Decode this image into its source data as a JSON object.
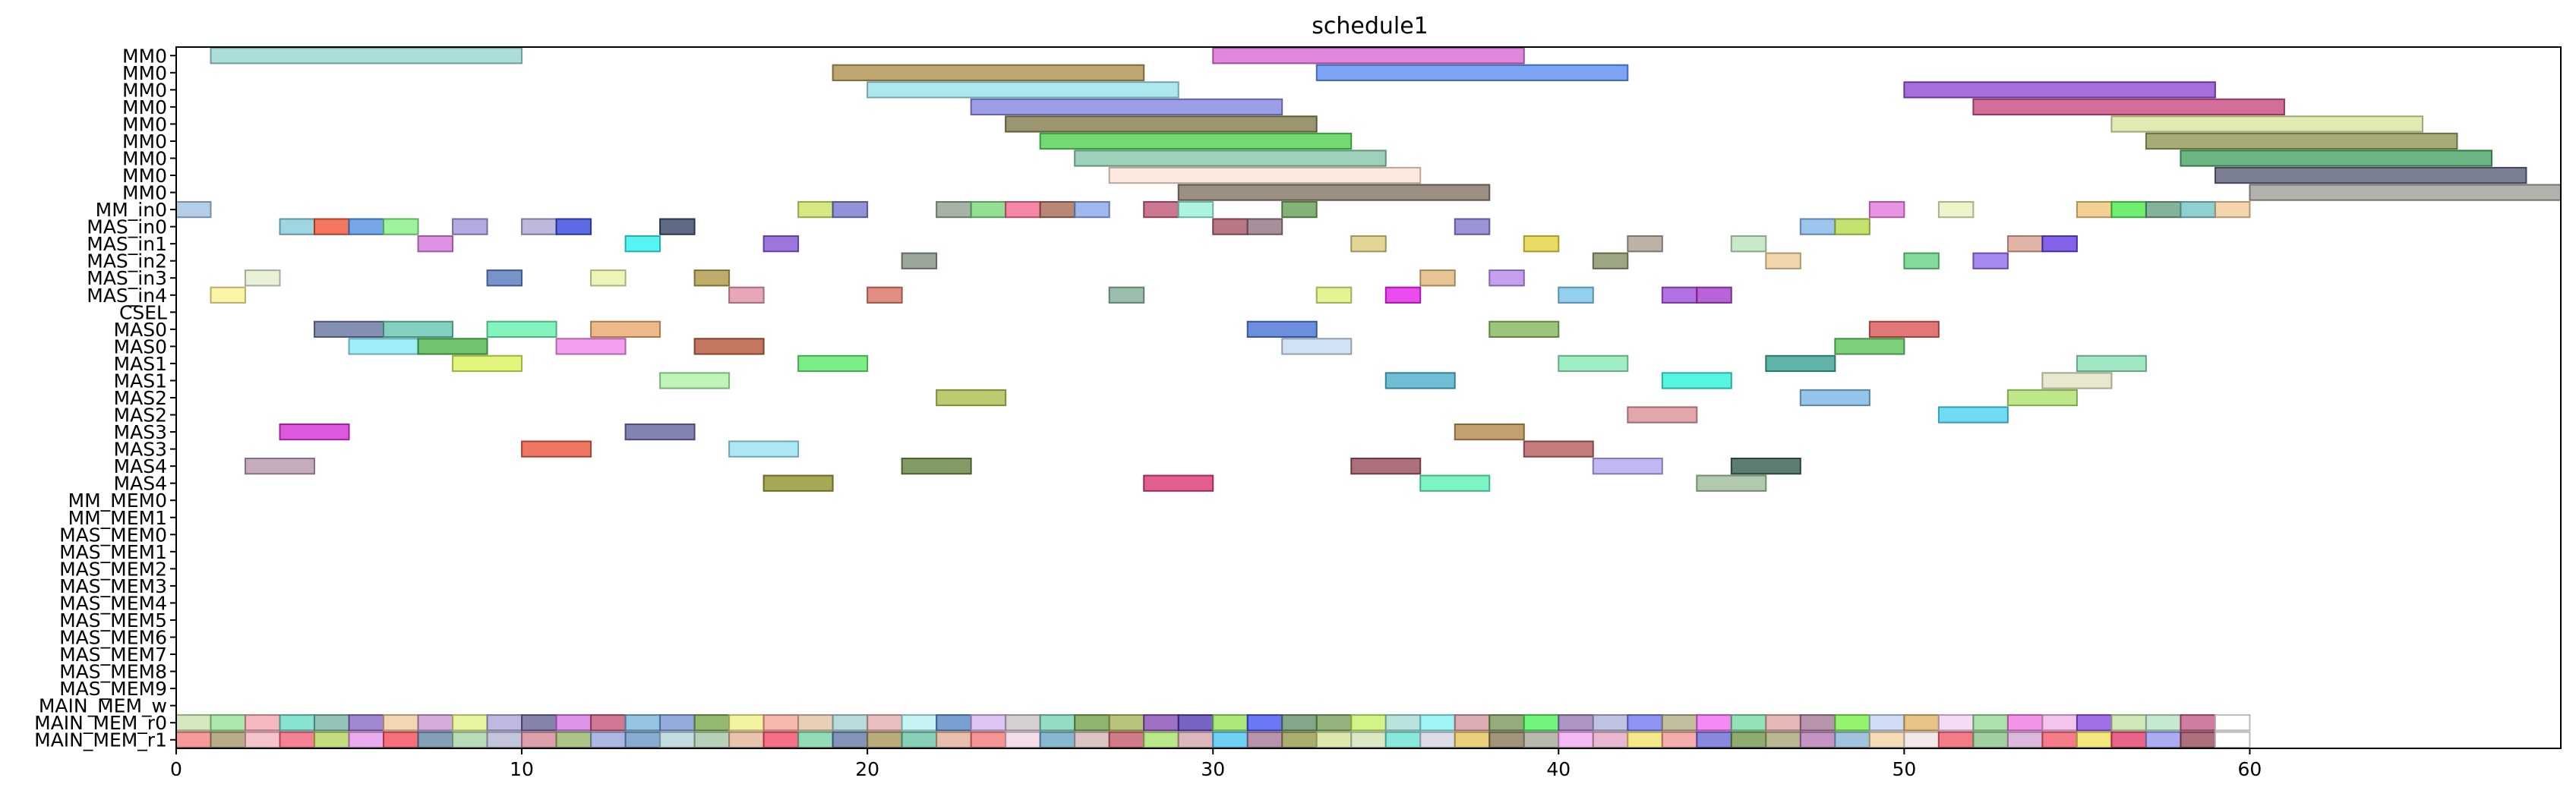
{
  "chart_data": {
    "type": "gantt",
    "title": "schedule1",
    "xlim": [
      0,
      69
    ],
    "xticks": [
      0,
      10,
      20,
      30,
      40,
      50,
      60
    ],
    "grid": false,
    "rows": [
      "MM0",
      "MM0",
      "MM0",
      "MM0",
      "MM0",
      "MM0",
      "MM0",
      "MM0",
      "MM0",
      "MM_in0",
      "MAS_in0",
      "MAS_in1",
      "MAS_in2",
      "MAS_in3",
      "MAS_in4",
      "CSEL",
      "MAS0",
      "MAS0",
      "MAS1",
      "MAS1",
      "MAS2",
      "MAS2",
      "MAS3",
      "MAS3",
      "MAS4",
      "MAS4",
      "MM_MEM0",
      "MM_MEM1",
      "MAS_MEM0",
      "MAS_MEM1",
      "MAS_MEM2",
      "MAS_MEM3",
      "MAS_MEM4",
      "MAS_MEM5",
      "MAS_MEM6",
      "MAS_MEM7",
      "MAS_MEM8",
      "MAS_MEM9",
      "MAIN_MEM_w",
      "MAIN_MEM_r0",
      "MAIN_MEM_r1"
    ],
    "tasks": [
      {
        "row": 0,
        "start": 1,
        "end": 10,
        "color": "#8fd3cc"
      },
      {
        "row": 0,
        "start": 30,
        "end": 39,
        "color": "#d65fcf"
      },
      {
        "row": 1,
        "start": 19,
        "end": 28,
        "color": "#a88a3e"
      },
      {
        "row": 1,
        "start": 33,
        "end": 42,
        "color": "#4f86f0"
      },
      {
        "row": 2,
        "start": 20,
        "end": 29,
        "color": "#94dfe8"
      },
      {
        "row": 2,
        "start": 50,
        "end": 59,
        "color": "#8a3dcc"
      },
      {
        "row": 3,
        "start": 23,
        "end": 32,
        "color": "#7b7fe0"
      },
      {
        "row": 3,
        "start": 52,
        "end": 61,
        "color": "#c43d7a"
      },
      {
        "row": 4,
        "start": 24,
        "end": 33,
        "color": "#7a7240"
      },
      {
        "row": 4,
        "start": 56,
        "end": 65,
        "color": "#d8e39a"
      },
      {
        "row": 5,
        "start": 25,
        "end": 34,
        "color": "#44cc44"
      },
      {
        "row": 5,
        "start": 57,
        "end": 66,
        "color": "#888f4a"
      },
      {
        "row": 6,
        "start": 26,
        "end": 35,
        "color": "#7ec2a2"
      },
      {
        "row": 6,
        "start": 58,
        "end": 67,
        "color": "#3b9e5a"
      },
      {
        "row": 7,
        "start": 27,
        "end": 36,
        "color": "#fbe0d2"
      },
      {
        "row": 7,
        "start": 59,
        "end": 68,
        "color": "#4f5470"
      },
      {
        "row": 8,
        "start": 29,
        "end": 38,
        "color": "#7a6a58"
      },
      {
        "row": 8,
        "start": 60,
        "end": 69,
        "color": "#9a9890"
      },
      {
        "row": 9,
        "start": 0,
        "end": 1,
        "color": "#9bbde0"
      },
      {
        "row": 9,
        "start": 18,
        "end": 19,
        "color": "#c9e05a"
      },
      {
        "row": 9,
        "start": 19,
        "end": 20,
        "color": "#6b6fc8"
      },
      {
        "row": 9,
        "start": 22,
        "end": 23,
        "color": "#8a9a88"
      },
      {
        "row": 9,
        "start": 23,
        "end": 24,
        "color": "#6fd46f"
      },
      {
        "row": 9,
        "start": 24,
        "end": 25,
        "color": "#f25f8a"
      },
      {
        "row": 9,
        "start": 25,
        "end": 26,
        "color": "#a0604a"
      },
      {
        "row": 9,
        "start": 26,
        "end": 27,
        "color": "#7fa0e8"
      },
      {
        "row": 9,
        "start": 28,
        "end": 29,
        "color": "#b84a6a"
      },
      {
        "row": 9,
        "start": 29,
        "end": 30,
        "color": "#8ef0d6"
      },
      {
        "row": 9,
        "start": 32,
        "end": 33,
        "color": "#5a9a4a"
      },
      {
        "row": 9,
        "start": 49,
        "end": 50,
        "color": "#e070d8"
      },
      {
        "row": 9,
        "start": 51,
        "end": 52,
        "color": "#e8f0b8"
      },
      {
        "row": 9,
        "start": 55,
        "end": 56,
        "color": "#f0c070"
      },
      {
        "row": 9,
        "start": 56,
        "end": 57,
        "color": "#40e840"
      },
      {
        "row": 9,
        "start": 57,
        "end": 58,
        "color": "#5a9a7a"
      },
      {
        "row": 9,
        "start": 58,
        "end": 59,
        "color": "#6ac0c0"
      },
      {
        "row": 9,
        "start": 59,
        "end": 60,
        "color": "#f0c890"
      },
      {
        "row": 10,
        "start": 3,
        "end": 4,
        "color": "#7ec8d8"
      },
      {
        "row": 10,
        "start": 4,
        "end": 5,
        "color": "#f04a2a"
      },
      {
        "row": 10,
        "start": 5,
        "end": 6,
        "color": "#4a88e0"
      },
      {
        "row": 10,
        "start": 6,
        "end": 7,
        "color": "#7ef07e"
      },
      {
        "row": 10,
        "start": 8,
        "end": 9,
        "color": "#9a90d8"
      },
      {
        "row": 10,
        "start": 10,
        "end": 11,
        "color": "#a8a0d0"
      },
      {
        "row": 10,
        "start": 11,
        "end": 12,
        "color": "#2a3ad8"
      },
      {
        "row": 10,
        "start": 14,
        "end": 15,
        "color": "#2a3a5a"
      },
      {
        "row": 10,
        "start": 30,
        "end": 31,
        "color": "#a04a5a"
      },
      {
        "row": 10,
        "start": 31,
        "end": 32,
        "color": "#8a6a7a"
      },
      {
        "row": 10,
        "start": 37,
        "end": 38,
        "color": "#7a70c8"
      },
      {
        "row": 10,
        "start": 47,
        "end": 48,
        "color": "#7ab0e8"
      },
      {
        "row": 10,
        "start": 48,
        "end": 49,
        "color": "#b0d840"
      },
      {
        "row": 11,
        "start": 7,
        "end": 8,
        "color": "#d070d8"
      },
      {
        "row": 11,
        "start": 13,
        "end": 14,
        "color": "#20f0f0"
      },
      {
        "row": 11,
        "start": 17,
        "end": 18,
        "color": "#7a4ad0"
      },
      {
        "row": 11,
        "start": 34,
        "end": 35,
        "color": "#d8c870"
      },
      {
        "row": 11,
        "start": 39,
        "end": 40,
        "color": "#e0d030"
      },
      {
        "row": 11,
        "start": 42,
        "end": 43,
        "color": "#a8988a"
      },
      {
        "row": 11,
        "start": 45,
        "end": 46,
        "color": "#b8e0b8"
      },
      {
        "row": 11,
        "start": 53,
        "end": 54,
        "color": "#d89a8a"
      },
      {
        "row": 11,
        "start": 54,
        "end": 55,
        "color": "#5a30e0"
      },
      {
        "row": 12,
        "start": 21,
        "end": 22,
        "color": "#7a8a78"
      },
      {
        "row": 12,
        "start": 41,
        "end": 42,
        "color": "#7a8a5a"
      },
      {
        "row": 12,
        "start": 46,
        "end": 47,
        "color": "#f0c890"
      },
      {
        "row": 12,
        "start": 50,
        "end": 51,
        "color": "#5ad07a"
      },
      {
        "row": 12,
        "start": 52,
        "end": 53,
        "color": "#8a60e8"
      },
      {
        "row": 13,
        "start": 2,
        "end": 3,
        "color": "#e0ecc8"
      },
      {
        "row": 13,
        "start": 9,
        "end": 10,
        "color": "#4a70b8"
      },
      {
        "row": 13,
        "start": 12,
        "end": 13,
        "color": "#e8f0a0"
      },
      {
        "row": 13,
        "start": 15,
        "end": 16,
        "color": "#a8903a"
      },
      {
        "row": 13,
        "start": 36,
        "end": 37,
        "color": "#e0b070"
      },
      {
        "row": 13,
        "start": 38,
        "end": 39,
        "color": "#b080e8"
      },
      {
        "row": 14,
        "start": 1,
        "end": 2,
        "color": "#f8f08a"
      },
      {
        "row": 14,
        "start": 16,
        "end": 17,
        "color": "#e08aa0"
      },
      {
        "row": 14,
        "start": 20,
        "end": 21,
        "color": "#d86a5a"
      },
      {
        "row": 14,
        "start": 27,
        "end": 28,
        "color": "#7aa890"
      },
      {
        "row": 14,
        "start": 33,
        "end": 34,
        "color": "#d8f070"
      },
      {
        "row": 14,
        "start": 35,
        "end": 36,
        "color": "#e010e8"
      },
      {
        "row": 14,
        "start": 40,
        "end": 41,
        "color": "#70c0e8"
      },
      {
        "row": 14,
        "start": 43,
        "end": 44,
        "color": "#9a40d8"
      },
      {
        "row": 14,
        "start": 44,
        "end": 45,
        "color": "#a030c8"
      },
      {
        "row": 16,
        "start": 4,
        "end": 6,
        "color": "#5a6a9a"
      },
      {
        "row": 16,
        "start": 6,
        "end": 8,
        "color": "#5ac0a8"
      },
      {
        "row": 16,
        "start": 9,
        "end": 11,
        "color": "#5af0a8"
      },
      {
        "row": 16,
        "start": 12,
        "end": 14,
        "color": "#e8a060"
      },
      {
        "row": 16,
        "start": 31,
        "end": 33,
        "color": "#3a6ad0"
      },
      {
        "row": 16,
        "start": 38,
        "end": 40,
        "color": "#7ab050"
      },
      {
        "row": 16,
        "start": 49,
        "end": 51,
        "color": "#d84a4a"
      },
      {
        "row": 17,
        "start": 5,
        "end": 7,
        "color": "#80e8f8"
      },
      {
        "row": 17,
        "start": 7,
        "end": 9,
        "color": "#40b040"
      },
      {
        "row": 17,
        "start": 11,
        "end": 13,
        "color": "#f080e8"
      },
      {
        "row": 17,
        "start": 15,
        "end": 17,
        "color": "#b04a2a"
      },
      {
        "row": 17,
        "start": 32,
        "end": 34,
        "color": "#c0d8f0"
      },
      {
        "row": 17,
        "start": 48,
        "end": 50,
        "color": "#50c050"
      },
      {
        "row": 18,
        "start": 8,
        "end": 10,
        "color": "#d8f050"
      },
      {
        "row": 18,
        "start": 18,
        "end": 20,
        "color": "#50e860"
      },
      {
        "row": 18,
        "start": 40,
        "end": 42,
        "color": "#80e8b0"
      },
      {
        "row": 18,
        "start": 46,
        "end": 48,
        "color": "#2a9a8a"
      },
      {
        "row": 18,
        "start": 55,
        "end": 57,
        "color": "#80e0b0"
      },
      {
        "row": 19,
        "start": 14,
        "end": 16,
        "color": "#a8f0a0"
      },
      {
        "row": 19,
        "start": 35,
        "end": 37,
        "color": "#40a8c8"
      },
      {
        "row": 19,
        "start": 43,
        "end": 45,
        "color": "#20f0d8"
      },
      {
        "row": 19,
        "start": 54,
        "end": 56,
        "color": "#e0e0c0"
      },
      {
        "row": 20,
        "start": 22,
        "end": 24,
        "color": "#a8b840"
      },
      {
        "row": 20,
        "start": 47,
        "end": 49,
        "color": "#70b0e0"
      },
      {
        "row": 20,
        "start": 53,
        "end": 55,
        "color": "#a8e060"
      },
      {
        "row": 21,
        "start": 42,
        "end": 44,
        "color": "#d88a90"
      },
      {
        "row": 21,
        "start": 51,
        "end": 53,
        "color": "#40d0f0"
      },
      {
        "row": 22,
        "start": 3,
        "end": 5,
        "color": "#d020d0"
      },
      {
        "row": 22,
        "start": 13,
        "end": 15,
        "color": "#5a5a9a"
      },
      {
        "row": 22,
        "start": 37,
        "end": 39,
        "color": "#b08040"
      },
      {
        "row": 23,
        "start": 10,
        "end": 12,
        "color": "#e84a30"
      },
      {
        "row": 23,
        "start": 16,
        "end": 18,
        "color": "#90e0f0"
      },
      {
        "row": 23,
        "start": 39,
        "end": 41,
        "color": "#b05050"
      },
      {
        "row": 24,
        "start": 2,
        "end": 4,
        "color": "#b090a8"
      },
      {
        "row": 24,
        "start": 21,
        "end": 23,
        "color": "#5a7a30"
      },
      {
        "row": 24,
        "start": 34,
        "end": 36,
        "color": "#904050"
      },
      {
        "row": 24,
        "start": 41,
        "end": 43,
        "color": "#b0a0f0"
      },
      {
        "row": 24,
        "start": 45,
        "end": 47,
        "color": "#2a5040"
      },
      {
        "row": 25,
        "start": 17,
        "end": 19,
        "color": "#8a8a20"
      },
      {
        "row": 25,
        "start": 28,
        "end": 30,
        "color": "#d82a6a"
      },
      {
        "row": 25,
        "start": 36,
        "end": 38,
        "color": "#50f0b0"
      },
      {
        "row": 25,
        "start": 44,
        "end": 46,
        "color": "#98b890"
      }
    ],
    "memory_rows": {
      "MAIN_MEM_r0": {
        "row": 39,
        "start": 0,
        "end": 60,
        "colors": [
          "#c8e0a8",
          "#90e090",
          "#f0a0a8",
          "#60d8c0",
          "#70b0a0",
          "#8060c0",
          "#f0c898",
          "#c890d0",
          "#e0f080",
          "#a8a0d8",
          "#5a5a90",
          "#d070e0",
          "#c04a70",
          "#70b0d8",
          "#7090d0",
          "#70a040",
          "#f0f080",
          "#f0a090",
          "#e0c0a0",
          "#a0d0d0",
          "#e0a8a8",
          "#b0f0f0",
          "#4a80c0",
          "#d0b0f0",
          "#c8c0c0",
          "#70d0b0",
          "#6a9a40",
          "#a0b050",
          "#8040b0",
          "#4a30b0",
          "#90e050",
          "#3a4af0",
          "#5a8a60",
          "#709a50",
          "#c0f060",
          "#a0d8d0",
          "#80f0f0",
          "#d09098",
          "#709050",
          "#40f050",
          "#9070b0",
          "#a8b0d8",
          "#6a70f0",
          "#b0a880",
          "#f060f0",
          "#70d8a0",
          "#e0a0a0",
          "#a07090",
          "#70f040",
          "#c0d0f0",
          "#e0b060",
          "#f0d0f0",
          "#90d890",
          "#f070e0",
          "#f0b0e8",
          "#8040e0",
          "#c0e0a0",
          "#b0e0c0",
          "#c05080",
          "#ffffff"
        ]
      },
      "MAIN_MEM_r1": {
        "row": 40,
        "start": 0,
        "end": 60,
        "colors": [
          "#f07878",
          "#a09060",
          "#f0b0b8",
          "#f05870",
          "#b0d050",
          "#e090e8",
          "#f04050",
          "#5a80a0",
          "#a0d0a0",
          "#b0b0d0",
          "#d08090",
          "#90b060",
          "#90a0d8",
          "#6090c0",
          "#b0d0d8",
          "#a0c0a0",
          "#e0b090",
          "#f04060",
          "#70d0a0",
          "#5a70a0",
          "#a09050",
          "#60c0a0",
          "#e0a890",
          "#f07070",
          "#f0d0e0",
          "#60a0c0",
          "#d0b0b0",
          "#c05060",
          "#a0e060",
          "#d0a0a8",
          "#40c0f0",
          "#a07090",
          "#909040",
          "#d0e090",
          "#d0e0b0",
          "#60e0d0",
          "#d0d0e0",
          "#e0c050",
          "#807050",
          "#a0a090",
          "#f0a0f0",
          "#e0a0c0",
          "#f0e060",
          "#f09090",
          "#6060d0",
          "#6a9040",
          "#a0a070",
          "#b070b0",
          "#80b0d0",
          "#f0d0a0",
          "#f0e0e0",
          "#f05060",
          "#80c080",
          "#d0a0d0",
          "#f05060",
          "#f0e050",
          "#e03060",
          "#9090f0",
          "#904050",
          "#ffffff"
        ]
      }
    }
  }
}
